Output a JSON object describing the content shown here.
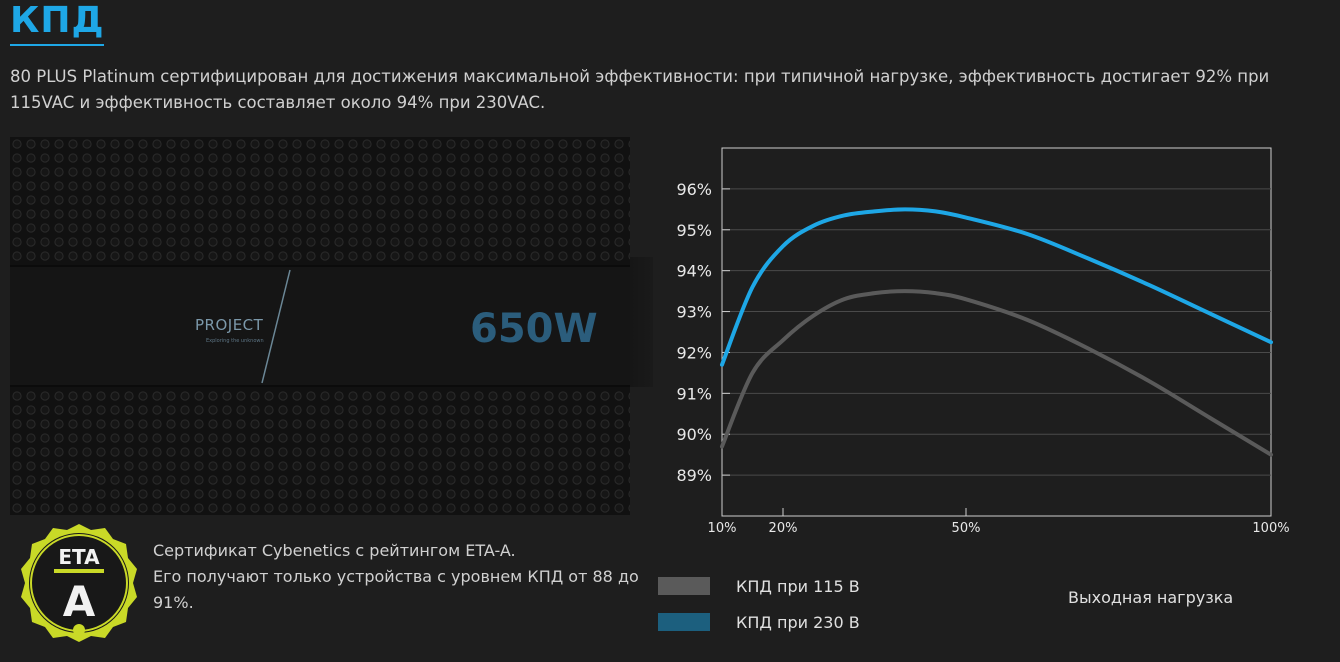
{
  "header": {
    "title": "КПД",
    "description": "80 PLUS Platinum сертифицирован для достижения максимальной эффективности: при типичной нагрузке, эффективность достигает 92% при 115VAC и эффективность составляет около 94% при 230VAC."
  },
  "product": {
    "brand_text": "PROJECT",
    "tagline": "Exploring the unknown",
    "wattage": "650W"
  },
  "certification": {
    "logo_text_top": "ETA",
    "logo_text_grade": "A",
    "line1": "Сертификат Cybenetics с рейтингом ETA-A.",
    "line2": "Его получают только устройства с уровнем КПД от 88 до 91%."
  },
  "colors": {
    "accent": "#1ea7e6",
    "series_115": "#5a5a5a",
    "series_230": "#1ea7e6",
    "legend_230": "#1c5f7e",
    "eta_ring": "#c9d927"
  },
  "chart_data": {
    "type": "line",
    "xlabel": "Выходная нагрузка",
    "ylabel": "",
    "x_ticks": [
      "10%",
      "20%",
      "50%",
      "100%"
    ],
    "y_ticks": [
      "89%",
      "90%",
      "91%",
      "92%",
      "93%",
      "94%",
      "95%",
      "96%"
    ],
    "xlim": [
      10,
      100
    ],
    "ylim": [
      88.0,
      97.0
    ],
    "grid": "horizontal",
    "series": [
      {
        "name": "КПД при 115 В",
        "x": [
          10,
          15,
          20,
          25,
          30,
          35,
          40,
          45,
          50,
          60,
          70,
          80,
          90,
          100
        ],
        "values": [
          89.7,
          91.5,
          92.3,
          92.9,
          93.3,
          93.45,
          93.5,
          93.45,
          93.3,
          92.8,
          92.1,
          91.3,
          90.4,
          89.5
        ]
      },
      {
        "name": "КПД при 230 В",
        "x": [
          10,
          15,
          20,
          25,
          30,
          35,
          40,
          45,
          50,
          60,
          70,
          80,
          90,
          100
        ],
        "values": [
          91.7,
          93.6,
          94.6,
          95.1,
          95.35,
          95.45,
          95.5,
          95.45,
          95.3,
          94.9,
          94.3,
          93.65,
          92.95,
          92.25
        ]
      }
    ]
  }
}
